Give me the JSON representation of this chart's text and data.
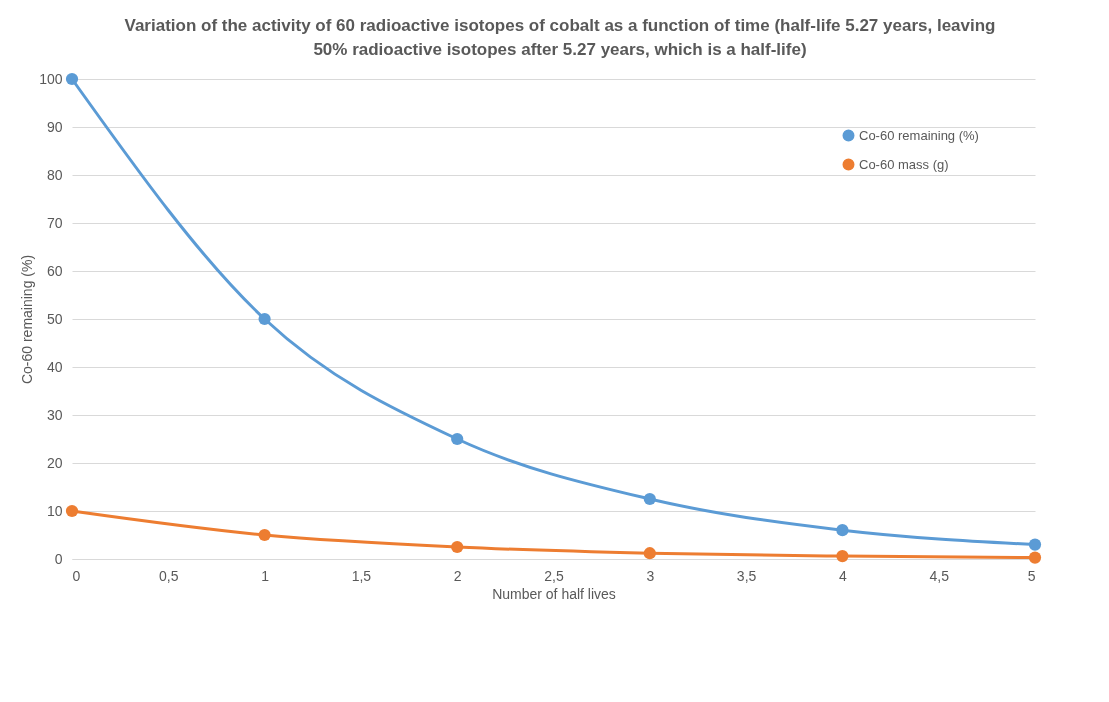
{
  "chart_data": {
    "type": "line",
    "title": "Variation of the activity of 60 radioactive isotopes of cobalt as a function of time (half-life 5.27 years, leaving 50% radioactive isotopes after 5.27 years, which is a half-life)",
    "xlabel": "Number of half lives",
    "ylabel": "Co-60 remaining (%)",
    "x": [
      0,
      1,
      2,
      3,
      4,
      5
    ],
    "series": [
      {
        "name": "Co-60 remaining (%)",
        "color": "#5b9bd5",
        "values": [
          100,
          50,
          25,
          12.5,
          6,
          3
        ]
      },
      {
        "name": "Co-60 mass (g)",
        "color": "#ed7d31",
        "values": [
          10,
          5,
          2.5,
          1.2,
          0.6,
          0.3
        ]
      }
    ],
    "xlim": [
      0,
      5
    ],
    "xticks": [
      0,
      {
        "value": 0.5,
        "label": "0,5"
      },
      1,
      {
        "value": 1.5,
        "label": "1,5"
      },
      2,
      {
        "value": 2.5,
        "label": "2,5"
      },
      3,
      {
        "value": 3.5,
        "label": "3,5"
      },
      4,
      {
        "value": 4.5,
        "label": "4,5"
      },
      5
    ],
    "ylim": [
      0,
      100
    ],
    "yticks": [
      0,
      10,
      20,
      30,
      40,
      50,
      60,
      70,
      80,
      90,
      100
    ],
    "grid": "y",
    "legend": "top right",
    "marker": "circle",
    "line_style": "solid"
  }
}
